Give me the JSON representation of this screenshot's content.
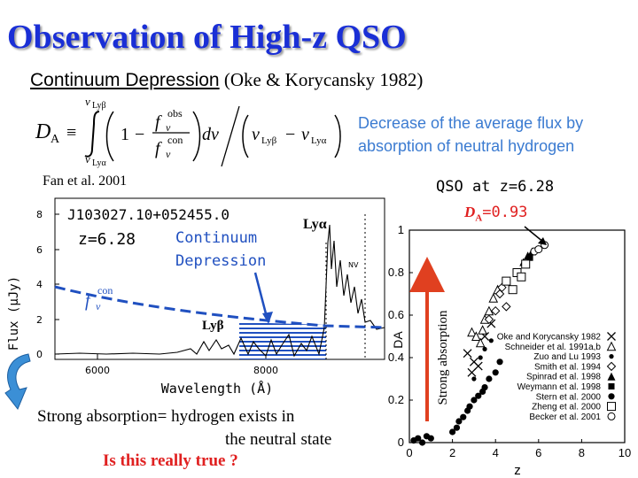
{
  "slide": {
    "title": "Observation of High-z QSO",
    "subtitle_main": "Continuum Depression",
    "subtitle_ref": "(Oke & Korycansky 1982)",
    "description_line1": "Decrease of the average flux by",
    "description_line2": "absorption of neutral hydrogen",
    "conclusion_line1": "Strong absorption= hydrogen exists in",
    "conclusion_line2": "the neutral state",
    "question": "Is this really true ?"
  },
  "formula": {
    "lhs": "D",
    "lhs_sub": "A",
    "equiv": "≡",
    "upper_limit": "ν",
    "upper_limit_sub": "Lyβ",
    "lower_limit": "ν",
    "lower_limit_sub": "Lyα",
    "one": "1",
    "minus": "−",
    "f": "f",
    "num_sup": "obs",
    "den_sup": "con",
    "nu_sub": "ν",
    "dnu": "dν",
    "range_lhs": "ν",
    "range_lhs_sub": "Lyβ",
    "range_rhs": "ν",
    "range_rhs_sub": "Lyα"
  },
  "spectrum": {
    "reference": "Fan et al. 2001",
    "object": "J103027.10+052455.0",
    "redshift": "z=6.28",
    "annotation_line1": "Continuum",
    "annotation_line2": "Depression",
    "lya_label": "Lyα",
    "lyb_label": "Lyβ",
    "nv_label": "NV",
    "fcon_f": "f",
    "fcon_sup": "con",
    "fcon_sub": "ν",
    "xlabel": "Wavelength (Å)",
    "ylabel": "Flux (μJy)",
    "yticks": [
      "0",
      "2",
      "4",
      "6",
      "8"
    ],
    "xticks": [
      "6000",
      "8000"
    ],
    "colors": {
      "continuum": "#2050c0",
      "hatch": "#2050c0"
    }
  },
  "chart_data": {
    "type": "scatter",
    "title": "QSO at z=6.28",
    "highlight_label": "D",
    "highlight_sub": "A",
    "highlight_value": "=0.93",
    "highlight_point": {
      "x": 6.28,
      "y": 0.93
    },
    "xlabel": "z",
    "ylabel": "DA",
    "xlim": [
      0,
      10
    ],
    "ylim": [
      0,
      1
    ],
    "xticks": [
      "0",
      "2",
      "4",
      "6",
      "8",
      "10"
    ],
    "yticks": [
      "0",
      "0.2",
      "0.4",
      "0.6",
      "0.8",
      "1"
    ],
    "arrow_label": "Strong absorption",
    "arrow_color": "#e04020",
    "series": [
      {
        "name": "Oke and Korycansky 1982",
        "marker": "x",
        "x": [
          2.7,
          3.0,
          3.2,
          3.5,
          3.8,
          2.9
        ],
        "y": [
          0.42,
          0.38,
          0.36,
          0.5,
          0.56,
          0.33
        ]
      },
      {
        "name": "Schneider et al. 1991a,b",
        "marker": "triangle",
        "x": [
          2.9,
          3.1,
          3.3,
          3.5,
          3.7,
          3.9,
          4.1,
          3.4
        ],
        "y": [
          0.52,
          0.5,
          0.47,
          0.58,
          0.62,
          0.68,
          0.72,
          0.53
        ]
      },
      {
        "name": "Zuo and Lu 1993",
        "marker": "circle",
        "x": [
          3.3,
          3.5,
          3.8,
          3.0
        ],
        "y": [
          0.4,
          0.44,
          0.48,
          0.3
        ]
      },
      {
        "name": "Smith et al. 1994",
        "marker": "diamond",
        "x": [
          3.7,
          4.0,
          4.2,
          4.5,
          4.3
        ],
        "y": [
          0.58,
          0.62,
          0.7,
          0.64,
          0.73
        ]
      },
      {
        "name": "Spinrad et al. 1998",
        "marker": "triangle-filled",
        "x": [
          5.3,
          5.5,
          5.7
        ],
        "y": [
          0.85,
          0.88,
          0.9
        ]
      },
      {
        "name": "Weymann et al. 1998",
        "marker": "square-filled",
        "x": [
          5.6
        ],
        "y": [
          0.87
        ]
      },
      {
        "name": "Stern et al. 2000",
        "marker": "circle-filled",
        "x": [
          0.2,
          0.4,
          0.6,
          0.8,
          1.0,
          2.0,
          2.3,
          2.5,
          2.7,
          3.0,
          3.2,
          3.5,
          3.7,
          4.0,
          4.2,
          2.2,
          2.8,
          3.4
        ],
        "y": [
          0.01,
          0.02,
          0.0,
          0.03,
          0.02,
          0.05,
          0.1,
          0.12,
          0.15,
          0.2,
          0.22,
          0.26,
          0.3,
          0.33,
          0.38,
          0.07,
          0.17,
          0.24
        ]
      },
      {
        "name": "Zheng et al. 2000",
        "marker": "square",
        "x": [
          4.5,
          4.8,
          5.0,
          5.2,
          5.4
        ],
        "y": [
          0.76,
          0.72,
          0.8,
          0.78,
          0.84
        ]
      },
      {
        "name": "Becker et al. 2001",
        "marker": "circle-open",
        "x": [
          5.8,
          6.0,
          6.28
        ],
        "y": [
          0.9,
          0.91,
          0.93
        ]
      }
    ]
  }
}
